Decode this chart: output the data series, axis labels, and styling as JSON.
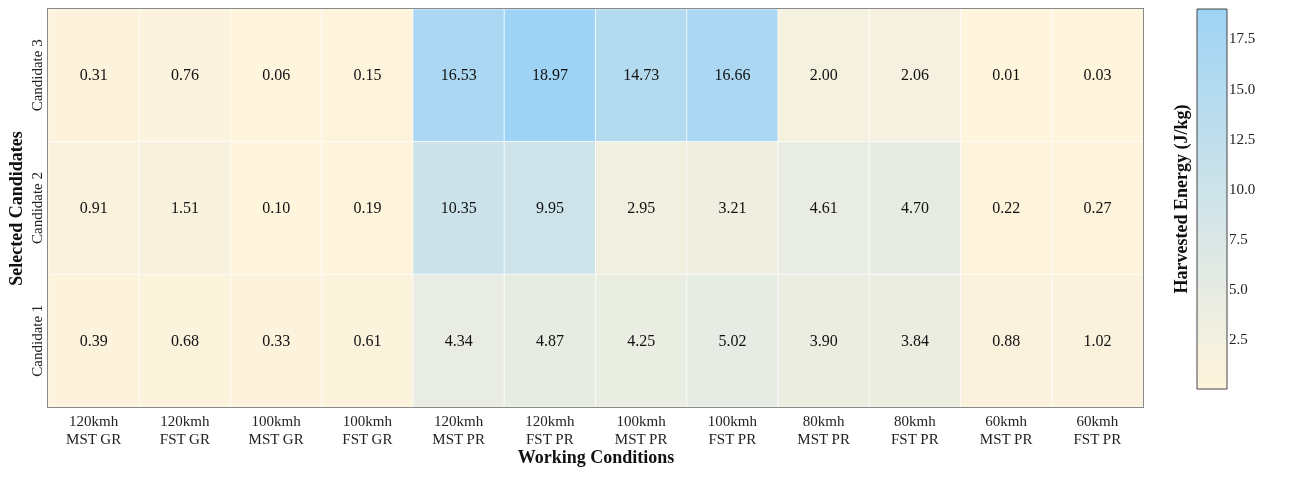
{
  "chart_data": {
    "type": "heatmap",
    "xlabel": "Working Conditions",
    "ylabel": "Selected Candidates",
    "clabel": "Harvested Energy (J/kg)",
    "categories": [
      "120kmh\nMST GR",
      "120kmh\nFST GR",
      "100kmh\nMST GR",
      "100kmh\nFST GR",
      "120kmh\nMST PR",
      "120kmh\nFST PR",
      "100kmh\nMST PR",
      "100kmh\nFST PR",
      "80kmh\nMST PR",
      "80kmh\nFST PR",
      "60kmh\nMST PR",
      "60kmh\nFST PR"
    ],
    "y_categories": [
      "Candidate 3",
      "Candidate 2",
      "Candidate 1"
    ],
    "cells": [
      [
        0.31,
        0.76,
        0.06,
        0.15,
        16.53,
        18.97,
        14.73,
        16.66,
        2.0,
        2.06,
        0.01,
        0.03
      ],
      [
        0.91,
        1.51,
        0.1,
        0.19,
        10.35,
        9.95,
        2.95,
        3.21,
        4.61,
        4.7,
        0.22,
        0.27
      ],
      [
        0.39,
        0.68,
        0.33,
        0.61,
        4.34,
        4.87,
        4.25,
        5.02,
        3.9,
        3.84,
        0.88,
        1.02
      ]
    ],
    "cell_labels": [
      [
        "0.31",
        "0.76",
        "0.06",
        "0.15",
        "16.53",
        "18.97",
        "14.73",
        "16.66",
        "2.00",
        "2.06",
        "0.01",
        "0.03"
      ],
      [
        "0.91",
        "1.51",
        "0.10",
        "0.19",
        "10.35",
        "9.95",
        "2.95",
        "3.21",
        "4.61",
        "4.70",
        "0.22",
        "0.27"
      ],
      [
        "0.39",
        "0.68",
        "0.33",
        "0.61",
        "4.34",
        "4.87",
        "4.25",
        "5.02",
        "3.90",
        "3.84",
        "0.88",
        "1.02"
      ]
    ],
    "colors": [
      "#fff4dc",
      "#9fd3f5"
    ],
    "clim": [
      0.01,
      18.97
    ],
    "cticks": [
      2.5,
      {
        "value": 5,
        "label": "5.0"
      },
      7.5,
      {
        "value": 10,
        "label": "10.0"
      },
      12.5,
      {
        "value": 15,
        "label": "15.0"
      },
      17.5
    ]
  }
}
